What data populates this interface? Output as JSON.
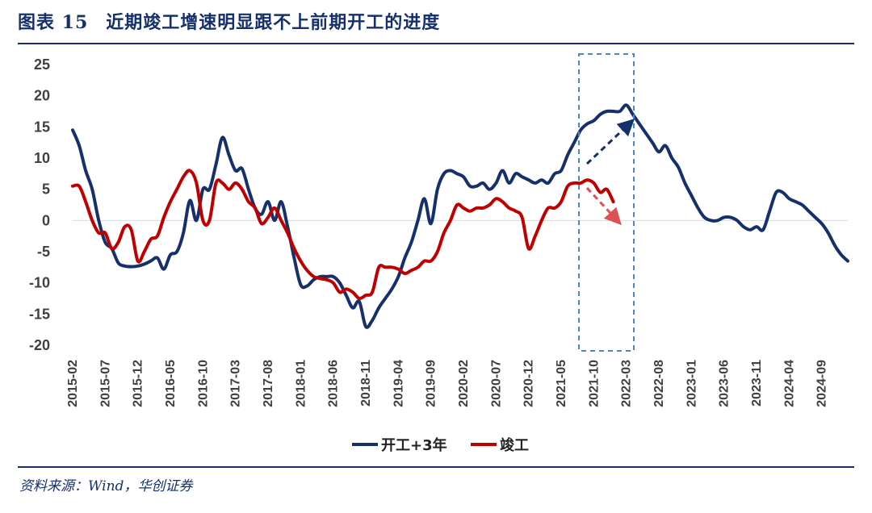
{
  "header": {
    "figure_label": "图表 15",
    "title": "近期竣工增速明显跟不上前期开工的进度"
  },
  "footer": {
    "source": "资料来源：Wind，华创证券"
  },
  "colors": {
    "series_1": "#16306b",
    "series_2": "#c00000",
    "accent": "#16306b",
    "highlight_box": "#4a86c8",
    "arrow_up": "#16306b",
    "arrow_down": "#e05050",
    "zero_line": "#d9d9d9"
  },
  "chart_data": {
    "type": "line",
    "x_ticks": [
      "2015-02",
      "2015-07",
      "2015-12",
      "2016-05",
      "2016-10",
      "2017-03",
      "2017-08",
      "2018-01",
      "2018-06",
      "2018-11",
      "2019-04",
      "2019-09",
      "2020-02",
      "2020-07",
      "2020-12",
      "2021-05",
      "2021-10",
      "2022-03",
      "2022-08",
      "2023-01",
      "2023-06",
      "2023-11",
      "2024-04",
      "2024-09"
    ],
    "ylim": [
      -20,
      25
    ],
    "y_ticks": [
      25,
      20,
      15,
      10,
      5,
      0,
      -5,
      -10,
      -15,
      -20
    ],
    "legend_position": "bottom-center",
    "grid": false,
    "series": [
      {
        "name": "开工+3年",
        "color": "#16306b",
        "points": [
          [
            "2015-02",
            14.5
          ],
          [
            "2015-03",
            12.0
          ],
          [
            "2015-04",
            8.0
          ],
          [
            "2015-05",
            5.0
          ],
          [
            "2015-06",
            0.0
          ],
          [
            "2015-07",
            -3.5
          ],
          [
            "2015-08",
            -4.5
          ],
          [
            "2015-09",
            -6.8
          ],
          [
            "2015-10",
            -7.3
          ],
          [
            "2015-11",
            -7.4
          ],
          [
            "2015-12",
            -7.3
          ],
          [
            "2016-01",
            -7.0
          ],
          [
            "2016-02",
            -6.5
          ],
          [
            "2016-03",
            -6.0
          ],
          [
            "2016-04",
            -7.8
          ],
          [
            "2016-05",
            -5.5
          ],
          [
            "2016-06",
            -5.0
          ],
          [
            "2016-07",
            -2.0
          ],
          [
            "2016-08",
            3.2
          ],
          [
            "2016-09",
            0.0
          ],
          [
            "2016-10",
            5.0
          ],
          [
            "2016-11",
            5.0
          ],
          [
            "2016-12",
            9.0
          ],
          [
            "2017-01",
            13.3
          ],
          [
            "2017-02",
            10.5
          ],
          [
            "2017-03",
            8.0
          ],
          [
            "2017-04",
            8.3
          ],
          [
            "2017-05",
            5.0
          ],
          [
            "2017-06",
            2.0
          ],
          [
            "2017-07",
            1.0
          ],
          [
            "2017-08",
            3.0
          ],
          [
            "2017-09",
            0.0
          ],
          [
            "2017-10",
            3.0
          ],
          [
            "2017-11",
            -1.0
          ],
          [
            "2017-12",
            -6.0
          ],
          [
            "2018-01",
            -10.3
          ],
          [
            "2018-02",
            -10.5
          ],
          [
            "2018-03",
            -9.5
          ],
          [
            "2018-04",
            -9.0
          ],
          [
            "2018-05",
            -9.0
          ],
          [
            "2018-06",
            -9.0
          ],
          [
            "2018-07",
            -10.0
          ],
          [
            "2018-08",
            -12.0
          ],
          [
            "2018-09",
            -14.0
          ],
          [
            "2018-10",
            -13.0
          ],
          [
            "2018-11",
            -17.0
          ],
          [
            "2018-12",
            -16.0
          ],
          [
            "2019-01",
            -14.0
          ],
          [
            "2019-02",
            -12.5
          ],
          [
            "2019-03",
            -11.0
          ],
          [
            "2019-04",
            -9.0
          ],
          [
            "2019-05",
            -6.0
          ],
          [
            "2019-06",
            -3.5
          ],
          [
            "2019-07",
            0.0
          ],
          [
            "2019-08",
            3.5
          ],
          [
            "2019-09",
            -0.5
          ],
          [
            "2019-10",
            5.0
          ],
          [
            "2019-11",
            7.5
          ],
          [
            "2019-12",
            8.0
          ],
          [
            "2020-01",
            7.5
          ],
          [
            "2020-02",
            7.0
          ],
          [
            "2020-03",
            5.5
          ],
          [
            "2020-04",
            5.5
          ],
          [
            "2020-05",
            6.0
          ],
          [
            "2020-06",
            5.0
          ],
          [
            "2020-07",
            6.0
          ],
          [
            "2020-08",
            8.0
          ],
          [
            "2020-09",
            6.0
          ],
          [
            "2020-10",
            7.5
          ],
          [
            "2020-11",
            7.0
          ],
          [
            "2020-12",
            6.5
          ],
          [
            "2021-01",
            6.0
          ],
          [
            "2021-02",
            6.5
          ],
          [
            "2021-03",
            6.0
          ],
          [
            "2021-04",
            7.5
          ],
          [
            "2021-05",
            8.0
          ],
          [
            "2021-06",
            10.5
          ],
          [
            "2021-07",
            12.5
          ],
          [
            "2021-08",
            14.5
          ],
          [
            "2021-09",
            15.5
          ],
          [
            "2021-10",
            16.0
          ],
          [
            "2021-11",
            17.0
          ],
          [
            "2021-12",
            17.5
          ],
          [
            "2022-01",
            17.5
          ],
          [
            "2022-02",
            17.5
          ],
          [
            "2022-03",
            18.5
          ],
          [
            "2022-04",
            17.0
          ],
          [
            "2022-05",
            15.5
          ],
          [
            "2022-06",
            14.0
          ],
          [
            "2022-07",
            12.5
          ],
          [
            "2022-08",
            11.0
          ],
          [
            "2022-09",
            12.0
          ],
          [
            "2022-10",
            10.0
          ],
          [
            "2022-11",
            8.5
          ],
          [
            "2022-12",
            6.0
          ],
          [
            "2023-01",
            4.0
          ],
          [
            "2023-02",
            2.0
          ],
          [
            "2023-03",
            0.5
          ],
          [
            "2023-04",
            0.0
          ],
          [
            "2023-05",
            0.0
          ],
          [
            "2023-06",
            0.5
          ],
          [
            "2023-07",
            0.5
          ],
          [
            "2023-08",
            0.0
          ],
          [
            "2023-09",
            -1.0
          ],
          [
            "2023-10",
            -1.5
          ],
          [
            "2023-11",
            -1.0
          ],
          [
            "2023-12",
            -1.5
          ],
          [
            "2024-01",
            1.5
          ],
          [
            "2024-02",
            4.5
          ],
          [
            "2024-03",
            4.5
          ],
          [
            "2024-04",
            3.5
          ],
          [
            "2024-05",
            3.0
          ],
          [
            "2024-06",
            2.5
          ],
          [
            "2024-07",
            1.5
          ],
          [
            "2024-08",
            0.5
          ],
          [
            "2024-09",
            -0.5
          ],
          [
            "2024-10",
            -2.0
          ],
          [
            "2024-11",
            -4.0
          ],
          [
            "2024-12",
            -5.5
          ],
          [
            "2025-01",
            -6.5
          ]
        ]
      },
      {
        "name": "竣工",
        "color": "#c00000",
        "points": [
          [
            "2015-02",
            5.5
          ],
          [
            "2015-03",
            5.5
          ],
          [
            "2015-04",
            3.0
          ],
          [
            "2015-05",
            0.0
          ],
          [
            "2015-06",
            -2.0
          ],
          [
            "2015-07",
            -2.0
          ],
          [
            "2015-08",
            -4.5
          ],
          [
            "2015-09",
            -3.5
          ],
          [
            "2015-10",
            -1.0
          ],
          [
            "2015-11",
            -1.5
          ],
          [
            "2015-12",
            -6.5
          ],
          [
            "2016-01",
            -5.0
          ],
          [
            "2016-02",
            -3.0
          ],
          [
            "2016-03",
            -2.5
          ],
          [
            "2016-04",
            0.5
          ],
          [
            "2016-05",
            3.0
          ],
          [
            "2016-06",
            5.0
          ],
          [
            "2016-07",
            7.0
          ],
          [
            "2016-08",
            8.0
          ],
          [
            "2016-09",
            6.0
          ],
          [
            "2016-10",
            0.0
          ],
          [
            "2016-11",
            0.0
          ],
          [
            "2016-12",
            6.0
          ],
          [
            "2017-01",
            6.0
          ],
          [
            "2017-02",
            5.0
          ],
          [
            "2017-03",
            6.0
          ],
          [
            "2017-04",
            5.0
          ],
          [
            "2017-05",
            3.0
          ],
          [
            "2017-06",
            2.0
          ],
          [
            "2017-07",
            -0.5
          ],
          [
            "2017-08",
            0.5
          ],
          [
            "2017-09",
            2.0
          ],
          [
            "2017-10",
            0.0
          ],
          [
            "2017-11",
            -2.0
          ],
          [
            "2017-12",
            -4.5
          ],
          [
            "2018-01",
            -6.5
          ],
          [
            "2018-02",
            -8.0
          ],
          [
            "2018-03",
            -9.0
          ],
          [
            "2018-04",
            -9.3
          ],
          [
            "2018-05",
            -9.5
          ],
          [
            "2018-06",
            -10.0
          ],
          [
            "2018-07",
            -11.5
          ],
          [
            "2018-08",
            -11.0
          ],
          [
            "2018-09",
            -11.5
          ],
          [
            "2018-10",
            -12.5
          ],
          [
            "2018-11",
            -12.0
          ],
          [
            "2018-12",
            -11.5
          ],
          [
            "2019-01",
            -7.5
          ],
          [
            "2019-02",
            -7.5
          ],
          [
            "2019-03",
            -7.5
          ],
          [
            "2019-04",
            -7.8
          ],
          [
            "2019-05",
            -8.5
          ],
          [
            "2019-06",
            -8.0
          ],
          [
            "2019-07",
            -7.5
          ],
          [
            "2019-08",
            -6.5
          ],
          [
            "2019-09",
            -6.5
          ],
          [
            "2019-10",
            -5.0
          ],
          [
            "2019-11",
            -2.0
          ],
          [
            "2019-12",
            0.0
          ],
          [
            "2020-01",
            2.5
          ],
          [
            "2020-02",
            2.0
          ],
          [
            "2020-03",
            1.5
          ],
          [
            "2020-04",
            2.0
          ],
          [
            "2020-05",
            2.0
          ],
          [
            "2020-06",
            2.5
          ],
          [
            "2020-07",
            3.5
          ],
          [
            "2020-08",
            3.0
          ],
          [
            "2020-09",
            2.0
          ],
          [
            "2020-10",
            1.5
          ],
          [
            "2020-11",
            0.5
          ],
          [
            "2020-12",
            -4.5
          ],
          [
            "2021-01",
            -2.5
          ],
          [
            "2021-02",
            0.0
          ],
          [
            "2021-03",
            2.0
          ],
          [
            "2021-04",
            2.0
          ],
          [
            "2021-05",
            3.0
          ],
          [
            "2021-06",
            5.5
          ],
          [
            "2021-07",
            6.0
          ],
          [
            "2021-08",
            6.0
          ],
          [
            "2021-09",
            6.5
          ],
          [
            "2021-10",
            6.0
          ],
          [
            "2021-11",
            4.5
          ],
          [
            "2021-12",
            5.0
          ],
          [
            "2022-01",
            3.0
          ]
        ]
      }
    ]
  }
}
